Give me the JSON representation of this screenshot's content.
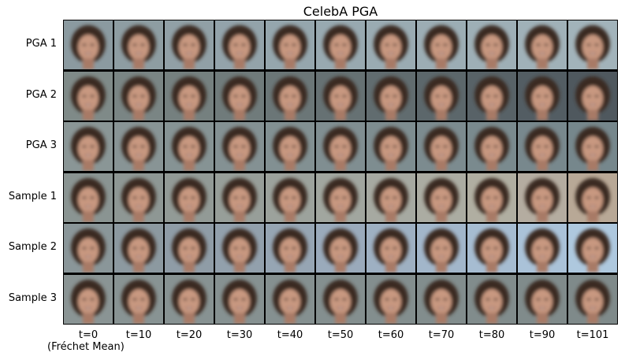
{
  "title": "CelebA PGA",
  "rows": [
    "PGA 1",
    "PGA 2",
    "PGA 3",
    "Sample 1",
    "Sample 2",
    "Sample 3"
  ],
  "cols": [
    "t=0",
    "t=10",
    "t=20",
    "t=30",
    "t=40",
    "t=50",
    "t=60",
    "t=70",
    "t=80",
    "t=90",
    "t=101"
  ],
  "first_col_sub": "(Fréchet Mean)",
  "icons": {
    "tile": "blurry-face-image"
  }
}
